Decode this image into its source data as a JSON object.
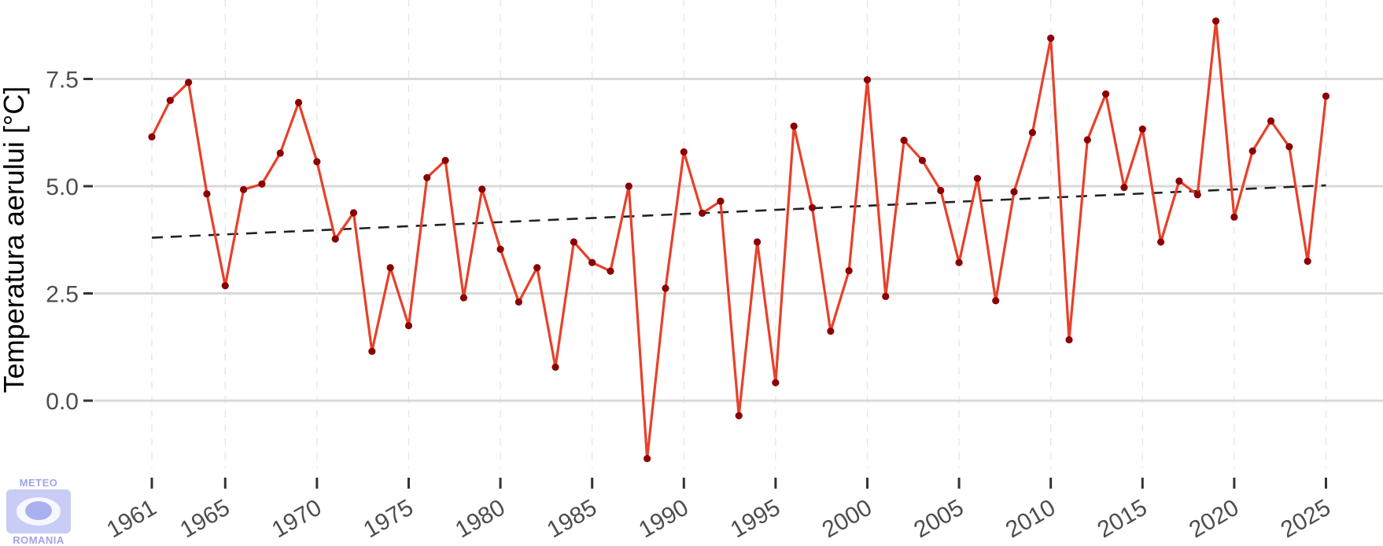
{
  "chart_data": {
    "type": "line",
    "xlabel": "",
    "ylabel": "Temperatura aerului [°C]",
    "x_tick_labels": [
      "1961",
      "1965",
      "1970",
      "1975",
      "1980",
      "1985",
      "1990",
      "1995",
      "2000",
      "2005",
      "2010",
      "2015",
      "2020",
      "2025"
    ],
    "y_tick_labels": [
      "0.0",
      "2.5",
      "5.0",
      "7.5"
    ],
    "y_ticks": [
      0,
      2.5,
      5,
      7.5
    ],
    "xlim": [
      1959.8,
      2028.7
    ],
    "ylim": [
      -1.7,
      9.3
    ],
    "grid": true,
    "series": [
      {
        "color": "#e8402a",
        "marker_color": "#8b0000",
        "x": [
          1961,
          1962,
          1963,
          1964,
          1965,
          1966,
          1967,
          1968,
          1969,
          1970,
          1971,
          1972,
          1973,
          1974,
          1975,
          1976,
          1977,
          1978,
          1979,
          1980,
          1981,
          1982,
          1983,
          1984,
          1985,
          1986,
          1987,
          1988,
          1989,
          1990,
          1991,
          1992,
          1993,
          1994,
          1995,
          1996,
          1997,
          1998,
          1999,
          2000,
          2001,
          2002,
          2003,
          2004,
          2005,
          2006,
          2007,
          2008,
          2009,
          2010,
          2011,
          2012,
          2013,
          2014,
          2015,
          2016,
          2017,
          2018,
          2019,
          2020,
          2021,
          2022,
          2023,
          2024,
          2025
        ],
        "values": [
          6.15,
          7.0,
          7.42,
          4.82,
          2.68,
          4.92,
          5.05,
          5.77,
          6.95,
          5.57,
          3.77,
          4.38,
          1.15,
          3.1,
          1.75,
          5.2,
          5.6,
          2.4,
          4.93,
          3.53,
          2.3,
          3.1,
          0.78,
          3.7,
          3.22,
          3.02,
          5.0,
          -1.35,
          2.62,
          5.8,
          4.37,
          4.65,
          -0.35,
          3.7,
          0.42,
          6.4,
          4.5,
          1.62,
          3.03,
          7.48,
          2.43,
          6.07,
          5.6,
          4.9,
          3.22,
          5.18,
          2.33,
          4.87,
          6.25,
          8.45,
          1.42,
          6.08,
          7.15,
          4.97,
          6.33,
          3.7,
          5.12,
          4.8,
          8.85,
          4.28,
          5.82,
          6.52,
          5.92,
          3.25,
          7.1
        ]
      }
    ],
    "trend": {
      "color": "#222222",
      "style": "dashed",
      "x": [
        1961,
        2025
      ],
      "values": [
        3.8,
        5.02
      ]
    }
  },
  "logo": {
    "top_text": "METEO",
    "bottom_text": "ROMANIA"
  }
}
